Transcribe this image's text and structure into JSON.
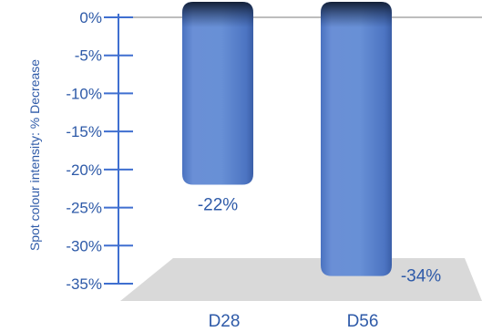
{
  "chart_data": {
    "type": "bar",
    "title": "",
    "xlabel": "",
    "ylabel": "Spot colour intensity: % Decrease",
    "categories": [
      "D28",
      "D56"
    ],
    "values": [
      -22,
      -34
    ],
    "data_labels": [
      "-22%",
      "-34%"
    ],
    "ylim": [
      -35,
      0
    ],
    "yticks": [
      0,
      -5,
      -10,
      -15,
      -20,
      -25,
      -30,
      -35
    ],
    "ytick_labels": [
      "0%",
      "-5%",
      "-10%",
      "-15%",
      "-20%",
      "-25%",
      "-30%",
      "-35%"
    ],
    "grid": false,
    "legend": "none",
    "colors": {
      "text": "#2e5aa8",
      "axis": "#3f6fd0",
      "bar_light": "#6a8fd6",
      "bar_mid": "#4a72c0",
      "bar_dark": "#1a2a4e",
      "floor": "#d9d9d9",
      "zero_line": "#bdbdbd"
    }
  }
}
